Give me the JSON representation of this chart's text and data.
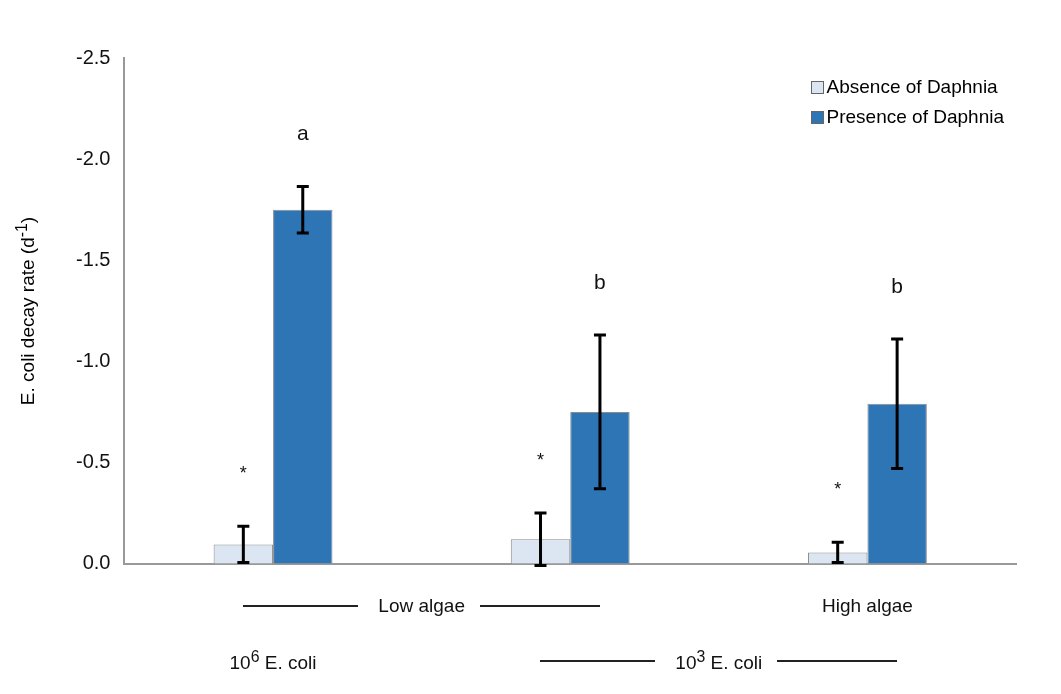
{
  "chart_data": {
    "type": "bar",
    "ylabel": "E. coli decay rate  (d$^{-1}$)",
    "categories": [
      null,
      null,
      null
    ],
    "series": [
      {
        "name": "Absence of Daphnia",
        "color": "#dce6f2",
        "values": [
          -0.095,
          -0.12,
          -0.055
        ],
        "errors": [
          0.09,
          0.13,
          0.05
        ]
      },
      {
        "name": "Presence of Daphnia",
        "color": "#2e75b6",
        "values": [
          -1.75,
          -0.75,
          -0.79
        ],
        "errors": [
          0.115,
          0.38,
          0.32
        ]
      }
    ],
    "ylim": [
      0,
      -2.5
    ],
    "yticks": [
      {
        "value": 0,
        "label": "0.0"
      },
      -0.5,
      {
        "value": -1,
        "label": "-1.0"
      },
      -1.5,
      {
        "value": -2,
        "label": "-2.0"
      },
      -2.5
    ],
    "grid": false,
    "legend": "top right",
    "annotations": [
      "*",
      "*",
      "*",
      "a",
      "b",
      "b",
      "Low algae",
      "High algae",
      "10$^{6}$ E. coli",
      "10$^{3}$ E. coli"
    ]
  }
}
